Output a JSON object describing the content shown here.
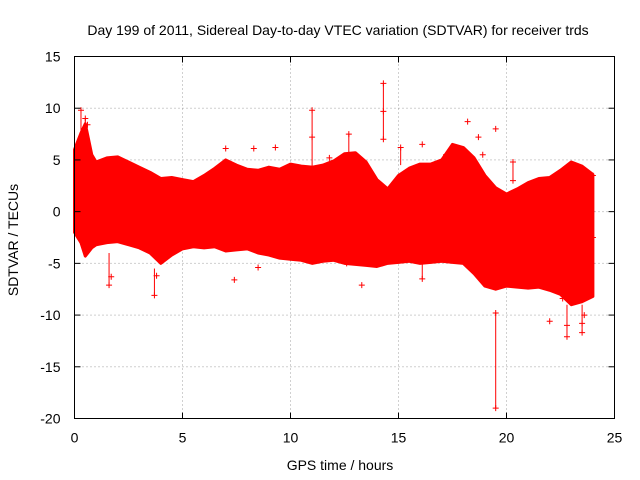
{
  "chart_data": {
    "type": "scatter",
    "title": "Day 199 of 2011, Sidereal Day-to-day VTEC variation (SDTVAR) for receiver trds",
    "xlabel": "GPS time / hours",
    "ylabel": "SDTVAR / TECUs",
    "xlim": [
      0,
      25
    ],
    "ylim": [
      -20,
      15
    ],
    "xticks": [
      0,
      5,
      10,
      15,
      20,
      25
    ],
    "yticks": [
      -20,
      -15,
      -10,
      -5,
      0,
      5,
      10,
      15
    ],
    "grid": true,
    "series_color": "#ff0000",
    "band_upper": [
      [
        0.0,
        6.0
      ],
      [
        0.3,
        7.6
      ],
      [
        0.5,
        8.5
      ],
      [
        0.8,
        5.5
      ],
      [
        1.0,
        4.8
      ],
      [
        1.5,
        5.2
      ],
      [
        2.0,
        5.3
      ],
      [
        2.5,
        4.8
      ],
      [
        3.0,
        4.3
      ],
      [
        3.5,
        3.8
      ],
      [
        4.0,
        3.2
      ],
      [
        4.5,
        3.3
      ],
      [
        5.0,
        3.1
      ],
      [
        5.5,
        2.9
      ],
      [
        6.0,
        3.5
      ],
      [
        6.5,
        4.2
      ],
      [
        7.0,
        5.0
      ],
      [
        7.5,
        4.5
      ],
      [
        8.0,
        4.1
      ],
      [
        8.5,
        4.0
      ],
      [
        9.0,
        4.3
      ],
      [
        9.5,
        4.1
      ],
      [
        10.0,
        4.6
      ],
      [
        10.5,
        4.4
      ],
      [
        11.0,
        4.3
      ],
      [
        11.5,
        4.5
      ],
      [
        12.0,
        4.9
      ],
      [
        12.5,
        5.6
      ],
      [
        13.0,
        5.7
      ],
      [
        13.5,
        4.8
      ],
      [
        14.0,
        3.1
      ],
      [
        14.5,
        2.2
      ],
      [
        15.0,
        3.5
      ],
      [
        15.5,
        4.2
      ],
      [
        16.0,
        4.6
      ],
      [
        16.5,
        4.6
      ],
      [
        17.0,
        5.0
      ],
      [
        17.5,
        6.5
      ],
      [
        18.0,
        6.2
      ],
      [
        18.5,
        5.2
      ],
      [
        19.0,
        3.5
      ],
      [
        19.5,
        2.3
      ],
      [
        20.0,
        1.7
      ],
      [
        20.5,
        2.2
      ],
      [
        21.0,
        2.8
      ],
      [
        21.5,
        3.2
      ],
      [
        22.0,
        3.3
      ],
      [
        22.5,
        4.0
      ],
      [
        23.0,
        4.8
      ],
      [
        23.5,
        4.4
      ],
      [
        24.0,
        3.6
      ]
    ],
    "band_lower": [
      [
        0.0,
        -2.0
      ],
      [
        0.3,
        -3.0
      ],
      [
        0.5,
        -4.3
      ],
      [
        0.8,
        -3.5
      ],
      [
        1.0,
        -3.2
      ],
      [
        1.5,
        -3.0
      ],
      [
        2.0,
        -2.9
      ],
      [
        2.5,
        -3.2
      ],
      [
        3.0,
        -3.5
      ],
      [
        3.5,
        -4.0
      ],
      [
        4.0,
        -5.0
      ],
      [
        4.5,
        -4.2
      ],
      [
        5.0,
        -3.6
      ],
      [
        5.5,
        -3.4
      ],
      [
        6.0,
        -3.5
      ],
      [
        6.5,
        -3.4
      ],
      [
        7.0,
        -3.8
      ],
      [
        7.5,
        -3.7
      ],
      [
        8.0,
        -3.6
      ],
      [
        8.5,
        -4.0
      ],
      [
        9.0,
        -4.2
      ],
      [
        9.5,
        -4.5
      ],
      [
        10.0,
        -4.6
      ],
      [
        10.5,
        -4.7
      ],
      [
        11.0,
        -5.0
      ],
      [
        11.5,
        -4.8
      ],
      [
        12.0,
        -4.7
      ],
      [
        12.5,
        -5.0
      ],
      [
        13.0,
        -5.1
      ],
      [
        13.5,
        -5.2
      ],
      [
        14.0,
        -5.3
      ],
      [
        14.5,
        -5.0
      ],
      [
        15.0,
        -4.9
      ],
      [
        15.5,
        -4.8
      ],
      [
        16.0,
        -5.0
      ],
      [
        16.5,
        -4.9
      ],
      [
        17.0,
        -4.8
      ],
      [
        17.5,
        -4.9
      ],
      [
        18.0,
        -5.0
      ],
      [
        18.5,
        -6.0
      ],
      [
        19.0,
        -7.2
      ],
      [
        19.5,
        -7.5
      ],
      [
        20.0,
        -7.2
      ],
      [
        20.5,
        -7.3
      ],
      [
        21.0,
        -7.4
      ],
      [
        21.5,
        -7.3
      ],
      [
        22.0,
        -7.6
      ],
      [
        22.5,
        -8.0
      ],
      [
        23.0,
        -9.0
      ],
      [
        23.5,
        -8.7
      ],
      [
        24.0,
        -8.2
      ]
    ],
    "scatter_outliers": [
      [
        0.3,
        9.8
      ],
      [
        0.5,
        9.0
      ],
      [
        0.6,
        8.4
      ],
      [
        1.6,
        -7.1
      ],
      [
        1.7,
        -6.3
      ],
      [
        3.7,
        -8.1
      ],
      [
        3.8,
        -6.2
      ],
      [
        7.0,
        6.1
      ],
      [
        7.4,
        -6.6
      ],
      [
        8.3,
        6.1
      ],
      [
        8.5,
        -5.4
      ],
      [
        9.3,
        6.2
      ],
      [
        11.0,
        9.8
      ],
      [
        11.0,
        7.2
      ],
      [
        11.8,
        5.2
      ],
      [
        12.6,
        -5.0
      ],
      [
        12.7,
        7.5
      ],
      [
        13.3,
        -7.1
      ],
      [
        14.3,
        12.4
      ],
      [
        14.3,
        9.7
      ],
      [
        14.3,
        7.0
      ],
      [
        15.1,
        6.2
      ],
      [
        16.1,
        6.5
      ],
      [
        16.1,
        -6.5
      ],
      [
        17.2,
        5.5
      ],
      [
        18.2,
        8.7
      ],
      [
        18.7,
        7.2
      ],
      [
        18.9,
        5.5
      ],
      [
        19.5,
        8.0
      ],
      [
        19.5,
        -9.8
      ],
      [
        19.5,
        -19.0
      ],
      [
        20.3,
        4.8
      ],
      [
        20.3,
        3.0
      ],
      [
        22.0,
        -10.6
      ],
      [
        22.6,
        -8.4
      ],
      [
        22.8,
        -12.1
      ],
      [
        22.8,
        -11.0
      ],
      [
        23.5,
        -10.8
      ],
      [
        23.5,
        -11.7
      ],
      [
        23.6,
        -10.0
      ],
      [
        24.0,
        -2.5
      ],
      [
        24.0,
        3.5
      ]
    ],
    "error_bars": [
      [
        0.3,
        6.0,
        9.8
      ],
      [
        0.5,
        6.5,
        9.0
      ],
      [
        1.6,
        -7.1,
        -4.0
      ],
      [
        3.7,
        -8.1,
        -5.5
      ],
      [
        11.0,
        4.3,
        9.8
      ],
      [
        12.7,
        5.6,
        7.5
      ],
      [
        14.3,
        7.0,
        12.4
      ],
      [
        15.1,
        4.5,
        6.2
      ],
      [
        16.1,
        -6.5,
        -5.0
      ],
      [
        19.5,
        -19.0,
        -9.8
      ],
      [
        20.3,
        3.0,
        4.8
      ],
      [
        22.8,
        -12.1,
        -9.0
      ],
      [
        23.5,
        -11.7,
        -9.0
      ]
    ]
  }
}
